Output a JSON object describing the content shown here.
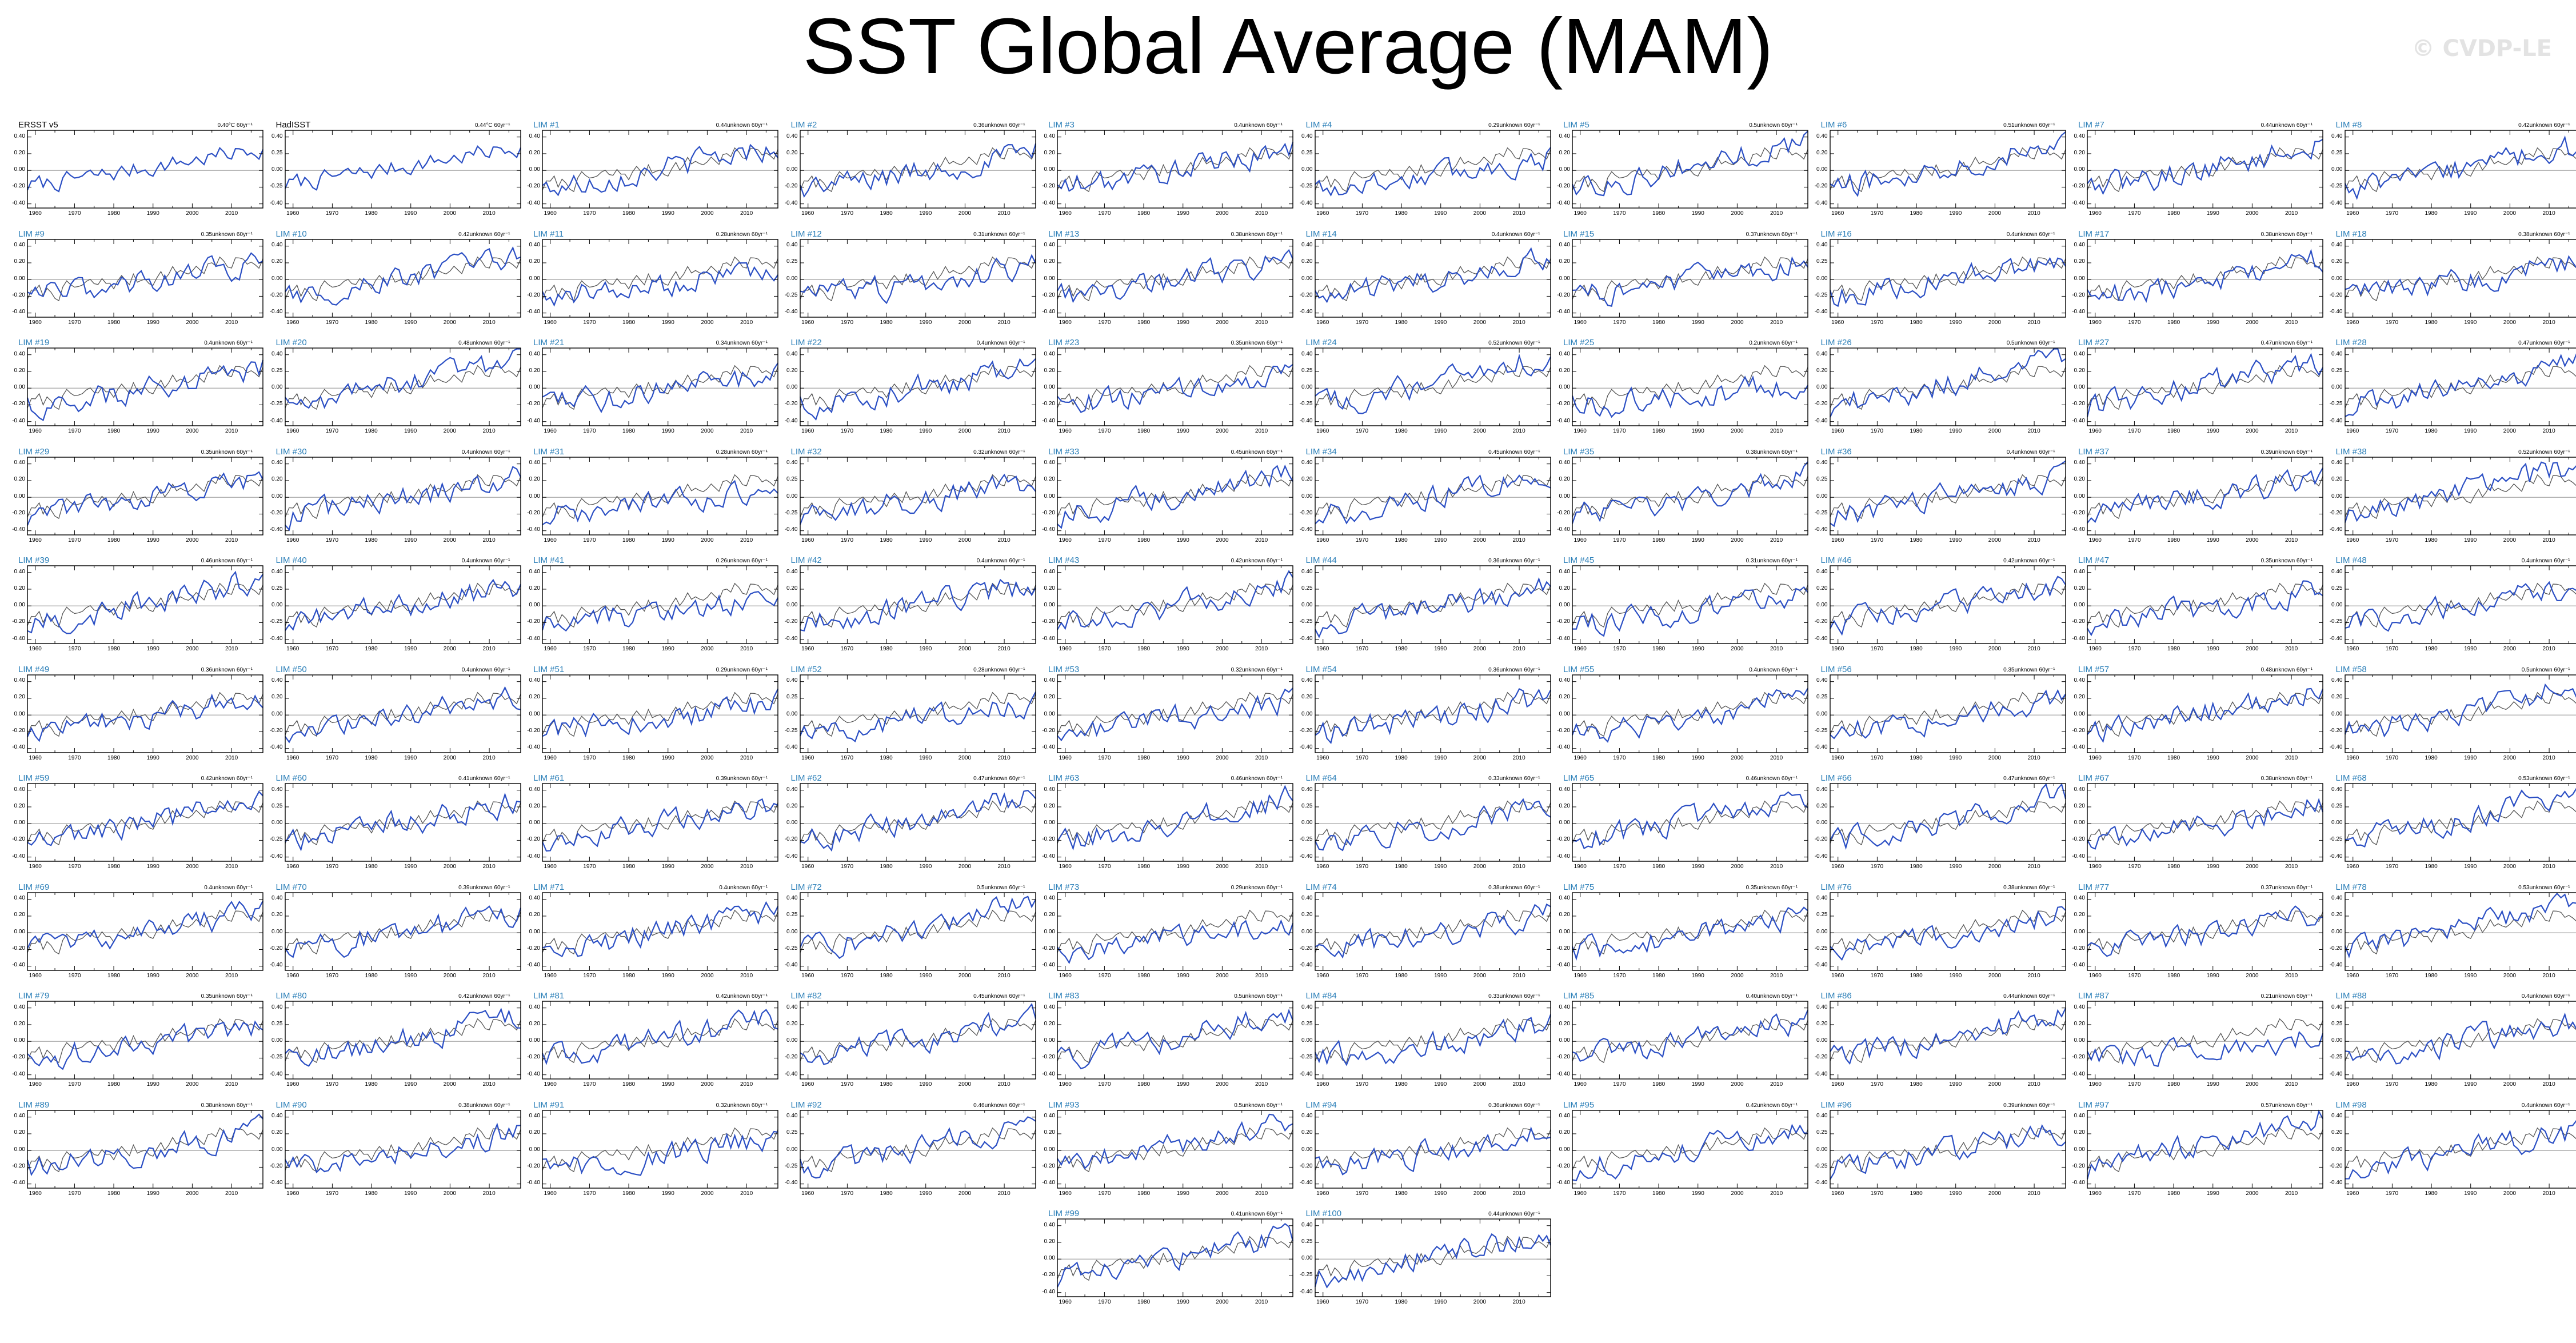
{
  "title": "SST Global Average (MAM)",
  "watermark": "© CVDP-LE",
  "colors": {
    "model_line": "#2b4fc4",
    "obs_line": "#555555",
    "zero_line": "#9a9a9a",
    "obs_title": "#000000",
    "model_title": "#2b7fb8"
  },
  "chart_data": {
    "type": "line",
    "grid": false,
    "xlim": [
      1958,
      2018
    ],
    "ylim": [
      -0.45,
      0.48
    ],
    "xtick_labels": [
      "1960",
      "1970",
      "1980",
      "1990",
      "2000",
      "2010"
    ],
    "ytick_labels": [
      "0.40",
      "0.20",
      "0.00",
      "-0.20",
      "-0.40"
    ],
    "ytick_labels_alt": [
      "0.40",
      "0.25",
      "0.00",
      "-0.25",
      "-0.40"
    ],
    "panels": [
      {
        "title": "ERSST v5",
        "trend": "0.40°C 60yr⁻¹"
      },
      {
        "title": "HadISST",
        "trend": "0.44°C 60yr⁻¹"
      },
      {
        "title": "LIM #1",
        "trend": "0.44unknown 60yr⁻¹"
      },
      {
        "title": "LIM #2",
        "trend": "0.36unknown 60yr⁻¹"
      },
      {
        "title": "LIM #3",
        "trend": "0.4unknown 60yr⁻¹"
      },
      {
        "title": "LIM #4",
        "trend": "0.29unknown 60yr⁻¹"
      },
      {
        "title": "LIM #5",
        "trend": "0.5unknown 60yr⁻¹"
      },
      {
        "title": "LIM #6",
        "trend": "0.51unknown 60yr⁻¹"
      },
      {
        "title": "LIM #7",
        "trend": "0.44unknown 60yr⁻¹"
      },
      {
        "title": "LIM #8",
        "trend": "0.42unknown 60yr⁻¹"
      },
      {
        "title": "LIM #9",
        "trend": "0.35unknown 60yr⁻¹"
      },
      {
        "title": "LIM #10",
        "trend": "0.42unknown 60yr⁻¹"
      },
      {
        "title": "LIM #11",
        "trend": "0.28unknown 60yr⁻¹"
      },
      {
        "title": "LIM #12",
        "trend": "0.31unknown 60yr⁻¹"
      },
      {
        "title": "LIM #13",
        "trend": "0.38unknown 60yr⁻¹"
      },
      {
        "title": "LIM #14",
        "trend": "0.4unknown 60yr⁻¹"
      },
      {
        "title": "LIM #15",
        "trend": "0.37unknown 60yr⁻¹"
      },
      {
        "title": "LIM #16",
        "trend": "0.4unknown 60yr⁻¹"
      },
      {
        "title": "LIM #17",
        "trend": "0.38unknown 60yr⁻¹"
      },
      {
        "title": "LIM #18",
        "trend": "0.38unknown 60yr⁻¹"
      },
      {
        "title": "LIM #19",
        "trend": "0.4unknown 60yr⁻¹"
      },
      {
        "title": "LIM #20",
        "trend": "0.48unknown 60yr⁻¹"
      },
      {
        "title": "LIM #21",
        "trend": "0.34unknown 60yr⁻¹"
      },
      {
        "title": "LIM #22",
        "trend": "0.4unknown 60yr⁻¹"
      },
      {
        "title": "LIM #23",
        "trend": "0.35unknown 60yr⁻¹"
      },
      {
        "title": "LIM #24",
        "trend": "0.52unknown 60yr⁻¹"
      },
      {
        "title": "LIM #25",
        "trend": "0.2unknown 60yr⁻¹"
      },
      {
        "title": "LIM #26",
        "trend": "0.5unknown 60yr⁻¹"
      },
      {
        "title": "LIM #27",
        "trend": "0.47unknown 60yr⁻¹"
      },
      {
        "title": "LIM #28",
        "trend": "0.47unknown 60yr⁻¹"
      },
      {
        "title": "LIM #29",
        "trend": "0.35unknown 60yr⁻¹"
      },
      {
        "title": "LIM #30",
        "trend": "0.4unknown 60yr⁻¹"
      },
      {
        "title": "LIM #31",
        "trend": "0.28unknown 60yr⁻¹"
      },
      {
        "title": "LIM #32",
        "trend": "0.32unknown 60yr⁻¹"
      },
      {
        "title": "LIM #33",
        "trend": "0.45unknown 60yr⁻¹"
      },
      {
        "title": "LIM #34",
        "trend": "0.45unknown 60yr⁻¹"
      },
      {
        "title": "LIM #35",
        "trend": "0.38unknown 60yr⁻¹"
      },
      {
        "title": "LIM #36",
        "trend": "0.4unknown 60yr⁻¹"
      },
      {
        "title": "LIM #37",
        "trend": "0.39unknown 60yr⁻¹"
      },
      {
        "title": "LIM #38",
        "trend": "0.52unknown 60yr⁻¹"
      },
      {
        "title": "LIM #39",
        "trend": "0.46unknown 60yr⁻¹"
      },
      {
        "title": "LIM #40",
        "trend": "0.4unknown 60yr⁻¹"
      },
      {
        "title": "LIM #41",
        "trend": "0.26unknown 60yr⁻¹"
      },
      {
        "title": "LIM #42",
        "trend": "0.4unknown 60yr⁻¹"
      },
      {
        "title": "LIM #43",
        "trend": "0.42unknown 60yr⁻¹"
      },
      {
        "title": "LIM #44",
        "trend": "0.36unknown 60yr⁻¹"
      },
      {
        "title": "LIM #45",
        "trend": "0.31unknown 60yr⁻¹"
      },
      {
        "title": "LIM #46",
        "trend": "0.42unknown 60yr⁻¹"
      },
      {
        "title": "LIM #47",
        "trend": "0.35unknown 60yr⁻¹"
      },
      {
        "title": "LIM #48",
        "trend": "0.4unknown 60yr⁻¹"
      },
      {
        "title": "LIM #49",
        "trend": "0.36unknown 60yr⁻¹"
      },
      {
        "title": "LIM #50",
        "trend": "0.4unknown 60yr⁻¹"
      },
      {
        "title": "LIM #51",
        "trend": "0.29unknown 60yr⁻¹"
      },
      {
        "title": "LIM #52",
        "trend": "0.28unknown 60yr⁻¹"
      },
      {
        "title": "LIM #53",
        "trend": "0.32unknown 60yr⁻¹"
      },
      {
        "title": "LIM #54",
        "trend": "0.36unknown 60yr⁻¹"
      },
      {
        "title": "LIM #55",
        "trend": "0.4unknown 60yr⁻¹"
      },
      {
        "title": "LIM #56",
        "trend": "0.35unknown 60yr⁻¹"
      },
      {
        "title": "LIM #57",
        "trend": "0.48unknown 60yr⁻¹"
      },
      {
        "title": "LIM #58",
        "trend": "0.5unknown 60yr⁻¹"
      },
      {
        "title": "LIM #59",
        "trend": "0.42unknown 60yr⁻¹"
      },
      {
        "title": "LIM #60",
        "trend": "0.41unknown 60yr⁻¹"
      },
      {
        "title": "LIM #61",
        "trend": "0.39unknown 60yr⁻¹"
      },
      {
        "title": "LIM #62",
        "trend": "0.47unknown 60yr⁻¹"
      },
      {
        "title": "LIM #63",
        "trend": "0.46unknown 60yr⁻¹"
      },
      {
        "title": "LIM #64",
        "trend": "0.33unknown 60yr⁻¹"
      },
      {
        "title": "LIM #65",
        "trend": "0.46unknown 60yr⁻¹"
      },
      {
        "title": "LIM #66",
        "trend": "0.47unknown 60yr⁻¹"
      },
      {
        "title": "LIM #67",
        "trend": "0.38unknown 60yr⁻¹"
      },
      {
        "title": "LIM #68",
        "trend": "0.53unknown 60yr⁻¹"
      },
      {
        "title": "LIM #69",
        "trend": "0.4unknown 60yr⁻¹"
      },
      {
        "title": "LIM #70",
        "trend": "0.39unknown 60yr⁻¹"
      },
      {
        "title": "LIM #71",
        "trend": "0.4unknown 60yr⁻¹"
      },
      {
        "title": "LIM #72",
        "trend": "0.5unknown 60yr⁻¹"
      },
      {
        "title": "LIM #73",
        "trend": "0.29unknown 60yr⁻¹"
      },
      {
        "title": "LIM #74",
        "trend": "0.38unknown 60yr⁻¹"
      },
      {
        "title": "LIM #75",
        "trend": "0.35unknown 60yr⁻¹"
      },
      {
        "title": "LIM #76",
        "trend": "0.38unknown 60yr⁻¹"
      },
      {
        "title": "LIM #77",
        "trend": "0.37unknown 60yr⁻¹"
      },
      {
        "title": "LIM #78",
        "trend": "0.53unknown 60yr⁻¹"
      },
      {
        "title": "LIM #79",
        "trend": "0.35unknown 60yr⁻¹"
      },
      {
        "title": "LIM #80",
        "trend": "0.42unknown 60yr⁻¹"
      },
      {
        "title": "LIM #81",
        "trend": "0.42unknown 60yr⁻¹"
      },
      {
        "title": "LIM #82",
        "trend": "0.45unknown 60yr⁻¹"
      },
      {
        "title": "LIM #83",
        "trend": "0.5unknown 60yr⁻¹"
      },
      {
        "title": "LIM #84",
        "trend": "0.33unknown 60yr⁻¹"
      },
      {
        "title": "LIM #85",
        "trend": "0.40unknown 60yr⁻¹"
      },
      {
        "title": "LIM #86",
        "trend": "0.44unknown 60yr⁻¹"
      },
      {
        "title": "LIM #87",
        "trend": "0.21unknown 60yr⁻¹"
      },
      {
        "title": "LIM #88",
        "trend": "0.4unknown 60yr⁻¹"
      },
      {
        "title": "LIM #89",
        "trend": "0.38unknown 60yr⁻¹"
      },
      {
        "title": "LIM #90",
        "trend": "0.38unknown 60yr⁻¹"
      },
      {
        "title": "LIM #91",
        "trend": "0.32unknown 60yr⁻¹"
      },
      {
        "title": "LIM #92",
        "trend": "0.46unknown 60yr⁻¹"
      },
      {
        "title": "LIM #93",
        "trend": "0.5unknown 60yr⁻¹"
      },
      {
        "title": "LIM #94",
        "trend": "0.36unknown 60yr⁻¹"
      },
      {
        "title": "LIM #95",
        "trend": "0.42unknown 60yr⁻¹"
      },
      {
        "title": "LIM #96",
        "trend": "0.39unknown 60yr⁻¹"
      },
      {
        "title": "LIM #97",
        "trend": "0.57unknown 60yr⁻¹"
      },
      {
        "title": "LIM #98",
        "trend": "0.4unknown 60yr⁻¹"
      },
      {
        "title": "LIM #99",
        "trend": "0.41unknown 60yr⁻¹"
      },
      {
        "title": "LIM #100",
        "trend": "0.44unknown 60yr⁻¹"
      }
    ],
    "obs_series_approx": {
      "x": [
        1958,
        1964,
        1970,
        1976,
        1982,
        1988,
        1994,
        2000,
        2006,
        2012,
        2018
      ],
      "y": [
        -0.15,
        -0.18,
        -0.2,
        -0.22,
        -0.08,
        0.0,
        0.05,
        0.1,
        0.18,
        0.22,
        0.42
      ]
    }
  }
}
